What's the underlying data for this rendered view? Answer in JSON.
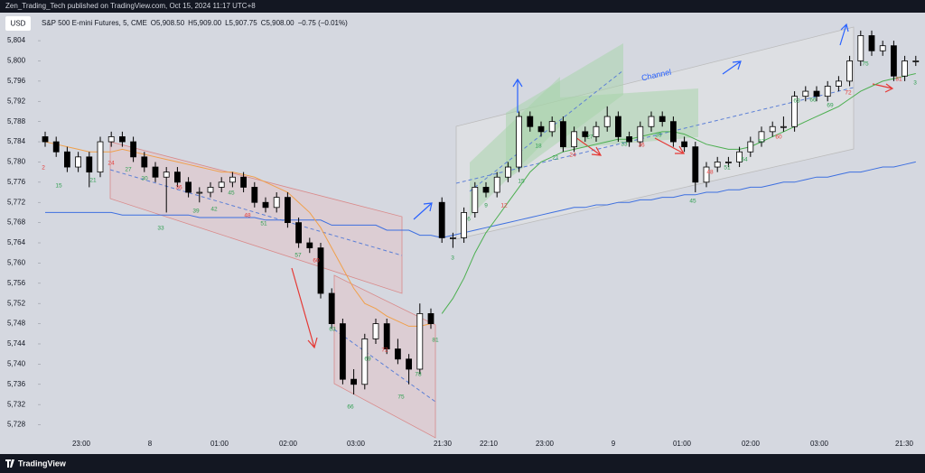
{
  "header": {
    "title": "Zen_Trading_Tech published on TradingView.com, Oct 15, 2024 11:17 UTC+8"
  },
  "footer": {
    "brand": "TradingView"
  },
  "currency": "USD",
  "legend": {
    "name": "S&P 500 E-mini Futures, 5, CME",
    "quote": [
      "O5,908.50",
      "H5,909.00",
      "L5,907.75",
      "C5,908.00",
      "−0.75 (−0.01%)"
    ]
  },
  "chart_data": {
    "type": "candlestick",
    "up_color": "#ffffff",
    "down_color": "#000000",
    "outline_color": "#000000",
    "ylim": [
      5725.6,
      5805.8
    ],
    "yticks": [
      {
        "value": 5804,
        "label": "5,804"
      },
      {
        "value": 5800,
        "label": "5,800"
      },
      {
        "value": 5796,
        "label": "5,796"
      },
      {
        "value": 5792,
        "label": "5,792"
      },
      {
        "value": 5788,
        "label": "5,788"
      },
      {
        "value": 5784,
        "label": "5,784"
      },
      {
        "value": 5780,
        "label": "5,780"
      },
      {
        "value": 5776,
        "label": "5,776"
      },
      {
        "value": 5772,
        "label": "5,772"
      },
      {
        "value": 5768,
        "label": "5,768"
      },
      {
        "value": 5764,
        "label": "5,764"
      },
      {
        "value": 5760,
        "label": "5,760"
      },
      {
        "value": 5756,
        "label": "5,756"
      },
      {
        "value": 5752,
        "label": "5,752"
      },
      {
        "value": 5748,
        "label": "5,748"
      },
      {
        "value": 5744,
        "label": "5,744"
      },
      {
        "value": 5740,
        "label": "5,740"
      },
      {
        "value": 5736,
        "label": "5,736"
      },
      {
        "value": 5732,
        "label": "5,732"
      },
      {
        "value": 5728,
        "label": "5,728"
      }
    ],
    "grid": false,
    "xtick_labels": [
      "23:00",
      "8",
      "01:00",
      "02:00",
      "03:00",
      "21:30",
      "22:10",
      "23:00",
      "9",
      "01:00",
      "02:00",
      "03:00",
      "21:30"
    ],
    "ohlc": [
      [
        5785,
        5786,
        5783,
        5784
      ],
      [
        5784,
        5785,
        5781,
        5782
      ],
      [
        5782,
        5783,
        5778,
        5779
      ],
      [
        5779,
        5782,
        5778,
        5781
      ],
      [
        5781,
        5782,
        5775,
        5778
      ],
      [
        5778,
        5785,
        5777,
        5784
      ],
      [
        5784,
        5786,
        5783,
        5785
      ],
      [
        5785,
        5786,
        5783,
        5784
      ],
      [
        5784,
        5785,
        5780,
        5781
      ],
      [
        5781,
        5782,
        5778,
        5779
      ],
      [
        5779,
        5780,
        5776,
        5777
      ],
      [
        5777,
        5779,
        5770,
        5778
      ],
      [
        5778,
        5779,
        5775,
        5776
      ],
      [
        5776,
        5777,
        5773,
        5774
      ],
      [
        5774,
        5775,
        5772,
        5774
      ],
      [
        5774,
        5776,
        5773,
        5775
      ],
      [
        5775,
        5777,
        5774,
        5776
      ],
      [
        5776,
        5778,
        5775,
        5777
      ],
      [
        5777,
        5778,
        5774,
        5775
      ],
      [
        5775,
        5776,
        5771,
        5772
      ],
      [
        5772,
        5773,
        5770,
        5771
      ],
      [
        5771,
        5774,
        5770,
        5773
      ],
      [
        5773,
        5774,
        5767,
        5768
      ],
      [
        5768,
        5769,
        5763,
        5764
      ],
      [
        5764,
        5765,
        5762,
        5763
      ],
      [
        5763,
        5764,
        5753,
        5754
      ],
      [
        5754,
        5755,
        5747,
        5748
      ],
      [
        5748,
        5749,
        5736,
        5737
      ],
      [
        5737,
        5739,
        5734,
        5736
      ],
      [
        5736,
        5746,
        5735,
        5745
      ],
      [
        5745,
        5749,
        5744,
        5748
      ],
      [
        5748,
        5749,
        5742,
        5743
      ],
      [
        5743,
        5745,
        5740,
        5741
      ],
      [
        5741,
        5742,
        5736,
        5739
      ],
      [
        5739,
        5752,
        5738,
        5750
      ],
      [
        5750,
        5751,
        5747,
        5748
      ],
      [
        5772,
        5773,
        5764,
        5765
      ],
      [
        5765,
        5766,
        5763,
        5765
      ],
      [
        5765,
        5771,
        5764,
        5770
      ],
      [
        5770,
        5776,
        5769,
        5775
      ],
      [
        5775,
        5776,
        5773,
        5774
      ],
      [
        5774,
        5778,
        5773,
        5777
      ],
      [
        5777,
        5780,
        5776,
        5779
      ],
      [
        5779,
        5790,
        5778,
        5789
      ],
      [
        5789,
        5790,
        5786,
        5787
      ],
      [
        5787,
        5788,
        5785,
        5786
      ],
      [
        5786,
        5789,
        5785,
        5788
      ],
      [
        5788,
        5789,
        5782,
        5783
      ],
      [
        5783,
        5787,
        5782,
        5786
      ],
      [
        5786,
        5787,
        5784,
        5785
      ],
      [
        5785,
        5788,
        5784,
        5787
      ],
      [
        5787,
        5791,
        5786,
        5789
      ],
      [
        5789,
        5790,
        5784,
        5785
      ],
      [
        5785,
        5786,
        5783,
        5784
      ],
      [
        5784,
        5788,
        5783,
        5787
      ],
      [
        5787,
        5790,
        5786,
        5789
      ],
      [
        5789,
        5790,
        5787,
        5788
      ],
      [
        5788,
        5789,
        5783,
        5784
      ],
      [
        5784,
        5785,
        5782,
        5783
      ],
      [
        5783,
        5784,
        5774,
        5776
      ],
      [
        5776,
        5780,
        5775,
        5779
      ],
      [
        5779,
        5781,
        5778,
        5780
      ],
      [
        5780,
        5781,
        5779,
        5780
      ],
      [
        5780,
        5783,
        5779,
        5782
      ],
      [
        5782,
        5785,
        5781,
        5784
      ],
      [
        5784,
        5787,
        5783,
        5786
      ],
      [
        5786,
        5788,
        5785,
        5787
      ],
      [
        5787,
        5789,
        5786,
        5787
      ],
      [
        5787,
        5794,
        5786,
        5793
      ],
      [
        5793,
        5795,
        5792,
        5794
      ],
      [
        5794,
        5795,
        5792,
        5793
      ],
      [
        5793,
        5796,
        5792,
        5795
      ],
      [
        5795,
        5797,
        5794,
        5796
      ],
      [
        5796,
        5801,
        5795,
        5800
      ],
      [
        5800,
        5806,
        5799,
        5805
      ],
      [
        5805,
        5806,
        5801,
        5802
      ],
      [
        5802,
        5804,
        5801,
        5803
      ],
      [
        5803,
        5804,
        5796,
        5797
      ],
      [
        5797,
        5801,
        5796,
        5800
      ],
      [
        5800,
        5801,
        5799,
        5800
      ]
    ],
    "lines": [
      {
        "color": "#3d6fe0",
        "values": [
          5770,
          5770,
          5770,
          5770,
          5770,
          5770,
          5770,
          5769.5,
          5769.5,
          5769.5,
          5769.5,
          5769.5,
          5769.5,
          5769.5,
          5769,
          5769,
          5769,
          5769,
          5769,
          5769,
          5768.5,
          5768.5,
          5768.5,
          5768.5,
          5768.5,
          5768.5,
          5767.5,
          5767.5,
          5767.5,
          5767.5,
          5767.5,
          5766.5,
          5766.5,
          5766.5,
          5765.5,
          5765.5,
          5765,
          5765.5,
          5766,
          5766.5,
          5767,
          5767.5,
          5768,
          5768.5,
          5769,
          5769.5,
          5770,
          5770.5,
          5771,
          5771,
          5771.5,
          5771.5,
          5772,
          5772,
          5772.5,
          5772.5,
          5773,
          5773,
          5773.5,
          5773.5,
          5774,
          5774,
          5774.5,
          5774.5,
          5775,
          5775,
          5775.5,
          5776,
          5776,
          5776.5,
          5777,
          5777,
          5777.5,
          5778,
          5778,
          5778.5,
          5779,
          5779,
          5779.5,
          5780
        ]
      },
      {
        "color": "#f0a04b",
        "values": [
          5784,
          5783.5,
          5783,
          5782.5,
          5782,
          5782,
          5782,
          5782.5,
          5782,
          5781.5,
          5781,
          5780.5,
          5780,
          5779.5,
          5779,
          5778.5,
          5778,
          5778,
          5777.5,
          5777,
          5776,
          5775,
          5774,
          5772,
          5770,
          5767,
          5763,
          5759,
          5755,
          5752,
          5751,
          5749.5,
          5748.5,
          5747.5,
          5747.5,
          5748,
          null,
          null,
          null,
          null,
          null,
          null,
          null,
          null,
          null,
          null,
          null,
          null,
          null,
          null,
          null,
          null,
          null,
          null,
          null,
          null,
          null,
          null,
          null,
          null,
          null,
          null,
          null,
          null,
          null,
          null,
          null,
          null,
          null,
          null,
          null,
          null,
          null,
          null,
          null,
          null,
          null,
          null,
          null,
          null
        ]
      },
      {
        "color": "#4caf50",
        "values": [
          null,
          null,
          null,
          null,
          null,
          null,
          null,
          null,
          null,
          null,
          null,
          null,
          null,
          null,
          null,
          null,
          null,
          null,
          null,
          null,
          null,
          null,
          null,
          null,
          null,
          null,
          null,
          null,
          null,
          null,
          null,
          null,
          null,
          null,
          null,
          null,
          5750,
          5753,
          5757,
          5762,
          5766,
          5769,
          5772,
          5775,
          5778,
          5780,
          5781,
          5782,
          5782.5,
          5783,
          5783.5,
          5784,
          5784.5,
          5784.5,
          5785,
          5785.5,
          5786,
          5786,
          5785.5,
          5784.5,
          5783.5,
          5783,
          5782.5,
          5782.5,
          5783,
          5784,
          5785,
          5786,
          5787,
          5788,
          5789,
          5790,
          5791,
          5792.5,
          5794,
          5795,
          5796,
          5796.5,
          5797,
          5797.5
        ]
      }
    ],
    "channel_label": "Channel",
    "annotations": [
      {
        "text": "2",
        "color": "#e53935"
      },
      {
        "text": "15",
        "color": "#2e9e4f"
      },
      {
        "text": "21",
        "color": "#2e9e4f"
      },
      {
        "text": "24",
        "color": "#e53935"
      },
      {
        "text": "27",
        "color": "#2e9e4f"
      },
      {
        "text": "30",
        "color": "#2e9e4f"
      },
      {
        "text": "33",
        "color": "#2e9e4f"
      },
      {
        "text": "36",
        "color": "#e53935"
      },
      {
        "text": "39",
        "color": "#2e9e4f"
      },
      {
        "text": "42",
        "color": "#2e9e4f"
      },
      {
        "text": "45",
        "color": "#2e9e4f"
      },
      {
        "text": "48",
        "color": "#e53935"
      },
      {
        "text": "51",
        "color": "#2e9e4f"
      },
      {
        "text": "57",
        "color": "#2e9e4f"
      },
      {
        "text": "60",
        "color": "#e53935"
      },
      {
        "text": "63",
        "color": "#2e9e4f"
      },
      {
        "text": "66",
        "color": "#2e9e4f"
      },
      {
        "text": "69",
        "color": "#2e9e4f"
      },
      {
        "text": "72",
        "color": "#e53935"
      },
      {
        "text": "75",
        "color": "#2e9e4f"
      },
      {
        "text": "78",
        "color": "#2e9e4f"
      },
      {
        "text": "81",
        "color": "#2e9e4f"
      },
      {
        "text": "3",
        "color": "#2e9e4f"
      },
      {
        "text": "6",
        "color": "#2e9e4f"
      },
      {
        "text": "9",
        "color": "#2e9e4f"
      },
      {
        "text": "12",
        "color": "#e53935"
      },
      {
        "text": "15",
        "color": "#2e9e4f"
      },
      {
        "text": "18",
        "color": "#2e9e4f"
      },
      {
        "text": "21",
        "color": "#2e9e4f"
      },
      {
        "text": "24",
        "color": "#e53935"
      },
      {
        "text": "27",
        "color": "#2e9e4f"
      },
      {
        "text": "33",
        "color": "#2e9e4f"
      },
      {
        "text": "36",
        "color": "#e53935"
      },
      {
        "text": "39",
        "color": "#2e9e4f"
      },
      {
        "text": "45",
        "color": "#2e9e4f"
      },
      {
        "text": "48",
        "color": "#e53935"
      },
      {
        "text": "51",
        "color": "#2e9e4f"
      },
      {
        "text": "54",
        "color": "#2e9e4f"
      },
      {
        "text": "57",
        "color": "#2e9e4f"
      },
      {
        "text": "60",
        "color": "#e53935"
      },
      {
        "text": "63",
        "color": "#2e9e4f"
      },
      {
        "text": "66",
        "color": "#2e9e4f"
      },
      {
        "text": "69",
        "color": "#2e9e4f"
      },
      {
        "text": "72",
        "color": "#e53935"
      },
      {
        "text": "75",
        "color": "#2e9e4f"
      },
      {
        "text": "81",
        "color": "#e53935"
      },
      {
        "text": "3",
        "color": "#2e9e4f"
      }
    ]
  }
}
